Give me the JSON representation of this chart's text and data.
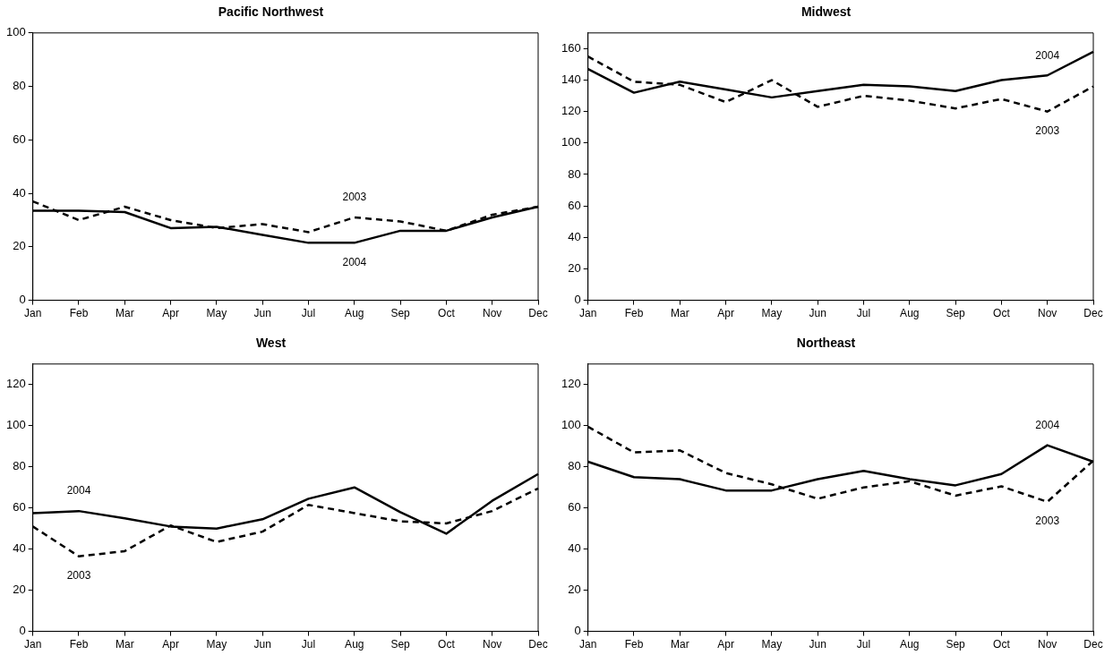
{
  "chart_data": [
    {
      "type": "line",
      "title": "Pacific Northwest",
      "categories": [
        "Jan",
        "Feb",
        "Mar",
        "Apr",
        "May",
        "Jun",
        "Jul",
        "Aug",
        "Sep",
        "Oct",
        "Nov",
        "Dec"
      ],
      "ylim": [
        0,
        100
      ],
      "yticks": [
        0,
        20,
        40,
        60,
        80,
        100
      ],
      "grid": false,
      "legend": false,
      "marker": "none",
      "series": [
        {
          "name": "2003",
          "color": "#000000",
          "line_style": "dashed",
          "values": [
            37,
            30,
            35,
            30,
            27,
            28.5,
            25.5,
            31,
            29.5,
            26,
            32,
            35
          ]
        },
        {
          "name": "2004",
          "color": "#000000",
          "line_style": "solid",
          "values": [
            33.5,
            33.5,
            33,
            27,
            27.5,
            24.5,
            21.5,
            21.5,
            26,
            26,
            31,
            35
          ]
        }
      ]
    },
    {
      "type": "line",
      "title": "Midwest",
      "categories": [
        "Jan",
        "Feb",
        "Mar",
        "Apr",
        "May",
        "Jun",
        "Jul",
        "Aug",
        "Sep",
        "Oct",
        "Nov",
        "Dec"
      ],
      "ylim": [
        0,
        170
      ],
      "yticks": [
        0,
        20,
        40,
        60,
        80,
        100,
        120,
        140,
        160
      ],
      "grid": false,
      "legend": false,
      "marker": "none",
      "series": [
        {
          "name": "2003",
          "color": "#000000",
          "line_style": "dashed",
          "values": [
            155,
            139,
            137,
            126,
            140,
            123,
            130,
            127,
            122,
            128,
            120,
            136
          ]
        },
        {
          "name": "2004",
          "color": "#000000",
          "line_style": "solid",
          "values": [
            147,
            132,
            139,
            134,
            129,
            133,
            137,
            136,
            133,
            140,
            143,
            158
          ]
        }
      ]
    },
    {
      "type": "line",
      "title": "West",
      "categories": [
        "Jan",
        "Feb",
        "Mar",
        "Apr",
        "May",
        "Jun",
        "Jul",
        "Aug",
        "Sep",
        "Oct",
        "Nov",
        "Dec"
      ],
      "ylim": [
        0,
        130
      ],
      "yticks": [
        0,
        20,
        40,
        60,
        80,
        100,
        120
      ],
      "grid": false,
      "legend": false,
      "marker": "none",
      "series": [
        {
          "name": "2003",
          "color": "#000000",
          "line_style": "dashed",
          "values": [
            51,
            36.5,
            39,
            51.5,
            43.5,
            48.5,
            61.5,
            57.5,
            53.5,
            52.5,
            58.5,
            69.5
          ]
        },
        {
          "name": "2004",
          "color": "#000000",
          "line_style": "solid",
          "values": [
            57.5,
            58.5,
            55,
            51,
            50,
            54.5,
            64.5,
            70,
            58,
            47.5,
            63.5,
            76.5
          ]
        }
      ]
    },
    {
      "type": "line",
      "title": "Northeast",
      "categories": [
        "Jan",
        "Feb",
        "Mar",
        "Apr",
        "May",
        "Jun",
        "Jul",
        "Aug",
        "Sep",
        "Oct",
        "Nov",
        "Dec"
      ],
      "ylim": [
        0,
        130
      ],
      "yticks": [
        0,
        20,
        40,
        60,
        80,
        100,
        120
      ],
      "grid": false,
      "legend": false,
      "marker": "none",
      "series": [
        {
          "name": "2003",
          "color": "#000000",
          "line_style": "dashed",
          "values": [
            99.5,
            87,
            88,
            77,
            71.5,
            64.5,
            70,
            73,
            66,
            70.5,
            63,
            83
          ]
        },
        {
          "name": "2004",
          "color": "#000000",
          "line_style": "solid",
          "values": [
            82.5,
            75,
            74,
            68.5,
            68.5,
            74,
            78,
            74,
            71,
            76.5,
            90.5,
            82.5
          ]
        }
      ]
    }
  ]
}
